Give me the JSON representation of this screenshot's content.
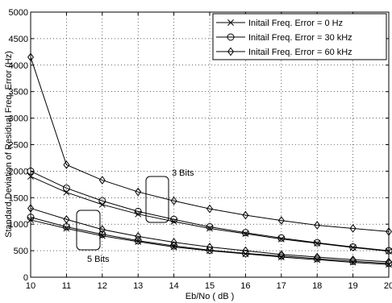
{
  "chart_data": {
    "type": "line",
    "xlabel": "Eb/No ( dB )",
    "ylabel": "Standard Deviation of Residual Freq. Error (Hz)",
    "xlim": [
      10,
      20
    ],
    "ylim": [
      0,
      5000
    ],
    "xticks": [
      "10",
      "11",
      "12",
      "13",
      "14",
      "15",
      "16",
      "17",
      "18",
      "19",
      "20"
    ],
    "yticks": [
      "0",
      "500",
      "1000",
      "1500",
      "2000",
      "2500",
      "3000",
      "3500",
      "4000",
      "4500",
      "5000"
    ],
    "grid": true,
    "legend_position": "top-right",
    "x": [
      10,
      11,
      12,
      13,
      14,
      15,
      16,
      17,
      18,
      19,
      20
    ],
    "series": [
      {
        "name": "Initail Freq. Error = 0 Hz",
        "marker": "x",
        "group": "3 Bits",
        "values": [
          1900,
          1600,
          1370,
          1190,
          1050,
          920,
          820,
          720,
          640,
          560,
          490
        ]
      },
      {
        "name": "Initail Freq. Error = 30 kHz",
        "marker": "circle",
        "group": "3 Bits",
        "values": [
          2000,
          1680,
          1440,
          1240,
          1090,
          950,
          840,
          740,
          650,
          570,
          500
        ]
      },
      {
        "name": "Initail Freq. Error = 60 kHz",
        "marker": "diamond",
        "group": "3 Bits",
        "values": [
          4150,
          2120,
          1830,
          1610,
          1440,
          1290,
          1170,
          1070,
          980,
          920,
          860
        ]
      },
      {
        "name": "Initail Freq. Error = 0 Hz",
        "marker": "x",
        "group": "5 Bits",
        "values": [
          1080,
          920,
          780,
          670,
          570,
          500,
          440,
          380,
          330,
          280,
          240
        ]
      },
      {
        "name": "Initail Freq. Error = 30 kHz",
        "marker": "circle",
        "group": "5 Bits",
        "values": [
          1130,
          950,
          810,
          690,
          590,
          510,
          450,
          400,
          350,
          300,
          260
        ]
      },
      {
        "name": "Initail Freq. Error = 60 kHz",
        "marker": "diamond",
        "group": "5 Bits",
        "values": [
          1300,
          1090,
          900,
          770,
          660,
          570,
          500,
          430,
          380,
          330,
          290
        ]
      }
    ],
    "legend": [
      "Initail Freq. Error = 0 Hz",
      "Initail Freq. Error = 30 kHz",
      "Initail Freq. Error = 60 kHz"
    ],
    "annotations": [
      {
        "text": "3 Bits",
        "x": 13.3,
        "y": 1400
      },
      {
        "text": "5 Bits",
        "x": 11,
        "y": 1000
      }
    ]
  }
}
